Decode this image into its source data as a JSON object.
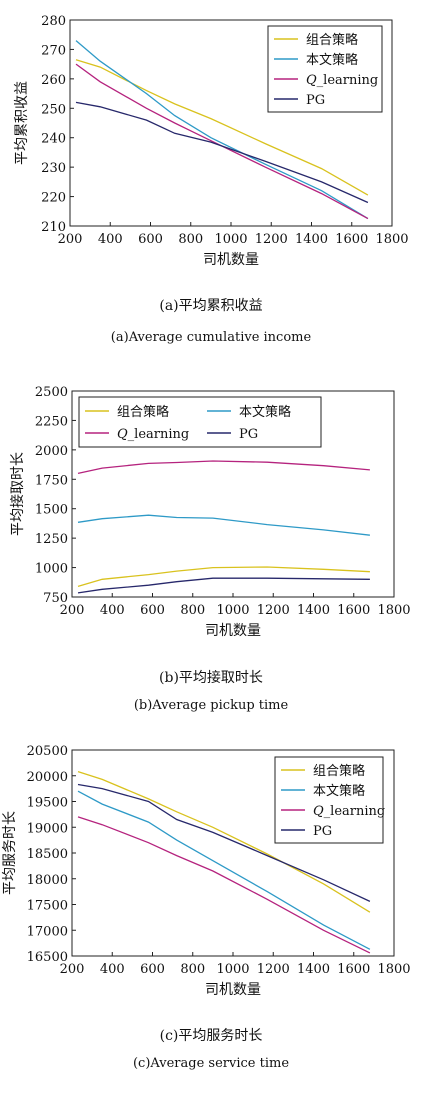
{
  "chart_data": [
    {
      "type": "line",
      "xlabel": "司机数量",
      "ylabel": "平均累积收益",
      "xlim": [
        200,
        1800
      ],
      "ylim": [
        210,
        280
      ],
      "xticks": [
        200,
        400,
        600,
        800,
        1000,
        1200,
        1400,
        1600,
        1800
      ],
      "yticks": [
        210,
        220,
        230,
        240,
        250,
        260,
        270,
        280
      ],
      "grid": false,
      "legend": "top-right",
      "caption_cn": "(a)平均累积收益",
      "caption_en": "(a)Average cumulative income",
      "series": [
        {
          "name": "组合策略",
          "color": "#d9c21e",
          "x": [
            230,
            350,
            580,
            720,
            900,
            1170,
            1450,
            1680
          ],
          "y": [
            266.5,
            264,
            256,
            251.5,
            246.5,
            238,
            229.5,
            220.5
          ]
        },
        {
          "name": "本文策略",
          "color": "#2e9ac7",
          "x": [
            230,
            350,
            580,
            720,
            900,
            1170,
            1450,
            1680
          ],
          "y": [
            273,
            266,
            255,
            247.5,
            240,
            231,
            222,
            212.5
          ]
        },
        {
          "name": "Q_learning",
          "color": "#b5237e",
          "x": [
            230,
            350,
            580,
            720,
            900,
            1170,
            1450,
            1680
          ],
          "y": [
            265,
            259,
            250,
            245,
            239,
            230,
            221,
            212.5
          ]
        },
        {
          "name": "PG",
          "color": "#27286b",
          "x": [
            230,
            350,
            580,
            720,
            900,
            1170,
            1450,
            1680
          ],
          "y": [
            252,
            250.5,
            246,
            241.5,
            238.5,
            232,
            225,
            218
          ]
        }
      ]
    },
    {
      "type": "line",
      "xlabel": "司机数量",
      "ylabel": "平均接取时长",
      "xlim": [
        200,
        1800
      ],
      "ylim": [
        750,
        2500
      ],
      "xticks": [
        200,
        400,
        600,
        800,
        1000,
        1200,
        1400,
        1600,
        1800
      ],
      "yticks": [
        750,
        1000,
        1250,
        1500,
        1750,
        2000,
        2250,
        2500
      ],
      "grid": false,
      "legend": "top",
      "caption_cn": "(b)平均接取时长",
      "caption_en": "(b)Average pickup time",
      "series": [
        {
          "name": "组合策略",
          "color": "#d9c21e",
          "x": [
            230,
            350,
            580,
            720,
            900,
            1170,
            1450,
            1680
          ],
          "y": [
            840,
            900,
            940,
            970,
            1000,
            1005,
            985,
            965
          ]
        },
        {
          "name": "本文策略",
          "color": "#2e9ac7",
          "x": [
            230,
            350,
            580,
            720,
            900,
            1170,
            1450,
            1680
          ],
          "y": [
            1385,
            1415,
            1445,
            1425,
            1420,
            1365,
            1320,
            1275
          ]
        },
        {
          "name": "Q_learning",
          "color": "#b5237e",
          "x": [
            230,
            350,
            580,
            720,
            900,
            1170,
            1450,
            1680
          ],
          "y": [
            1800,
            1845,
            1885,
            1893,
            1905,
            1895,
            1865,
            1830
          ]
        },
        {
          "name": "PG",
          "color": "#27286b",
          "x": [
            230,
            350,
            580,
            720,
            900,
            1170,
            1450,
            1680
          ],
          "y": [
            785,
            815,
            850,
            880,
            910,
            910,
            905,
            900
          ]
        }
      ]
    },
    {
      "type": "line",
      "xlabel": "司机数量",
      "ylabel": "平均服务时长",
      "xlim": [
        200,
        1800
      ],
      "ylim": [
        16500,
        20500
      ],
      "xticks": [
        200,
        400,
        600,
        800,
        1000,
        1200,
        1400,
        1600,
        1800
      ],
      "yticks": [
        16500,
        17000,
        17500,
        18000,
        18500,
        19000,
        19500,
        20000,
        20500
      ],
      "grid": false,
      "legend": "top-right",
      "caption_cn": "(c)平均服务时长",
      "caption_en": "(c)Average service time",
      "series": [
        {
          "name": "组合策略",
          "color": "#d9c21e",
          "x": [
            230,
            350,
            580,
            720,
            900,
            1170,
            1450,
            1680
          ],
          "y": [
            20080,
            19930,
            19550,
            19300,
            19000,
            18480,
            17900,
            17350
          ]
        },
        {
          "name": "本文策略",
          "color": "#2e9ac7",
          "x": [
            230,
            350,
            580,
            720,
            900,
            1170,
            1450,
            1680
          ],
          "y": [
            19700,
            19450,
            19100,
            18750,
            18350,
            17750,
            17100,
            16630
          ]
        },
        {
          "name": "Q_learning",
          "color": "#b5237e",
          "x": [
            230,
            350,
            580,
            720,
            900,
            1170,
            1450,
            1680
          ],
          "y": [
            19200,
            19050,
            18700,
            18450,
            18150,
            17600,
            17000,
            16560
          ]
        },
        {
          "name": "PG",
          "color": "#27286b",
          "x": [
            230,
            350,
            580,
            720,
            900,
            1170,
            1450,
            1680
          ],
          "y": [
            19830,
            19750,
            19500,
            19150,
            18900,
            18450,
            17980,
            17560
          ]
        }
      ]
    }
  ]
}
